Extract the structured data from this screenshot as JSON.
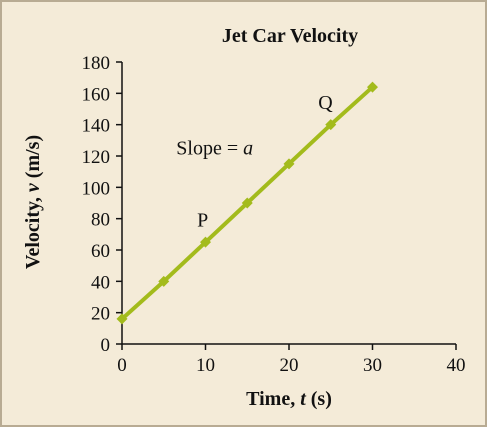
{
  "chart_data": {
    "type": "line",
    "title": "Jet Car Velocity",
    "xlabel": {
      "prefix": "Time, ",
      "var": "t",
      "suffix": " (s)"
    },
    "ylabel": {
      "prefix": "Velocity, ",
      "var": "v",
      "suffix": " (m/s)"
    },
    "xlim": [
      0,
      40
    ],
    "ylim": [
      0,
      180
    ],
    "xticks": [
      0,
      10,
      20,
      30,
      40
    ],
    "yticks": [
      0,
      20,
      40,
      60,
      80,
      100,
      120,
      140,
      160,
      180
    ],
    "grid": false,
    "series": [
      {
        "x": [
          0,
          5,
          10,
          15,
          20,
          25,
          30
        ],
        "y": [
          16,
          40,
          65,
          90,
          115,
          140,
          164
        ]
      }
    ],
    "annotations": [
      {
        "text": "P",
        "x": 9.0,
        "y": 75
      },
      {
        "text": "Q",
        "x": 23.5,
        "y": 150
      },
      {
        "prefix": "Slope = ",
        "var": "a",
        "x": 6.5,
        "y": 121
      }
    ],
    "colors": {
      "line": "#a3bb1c",
      "marker": "#a3bb1c",
      "axis": "#111111"
    }
  }
}
